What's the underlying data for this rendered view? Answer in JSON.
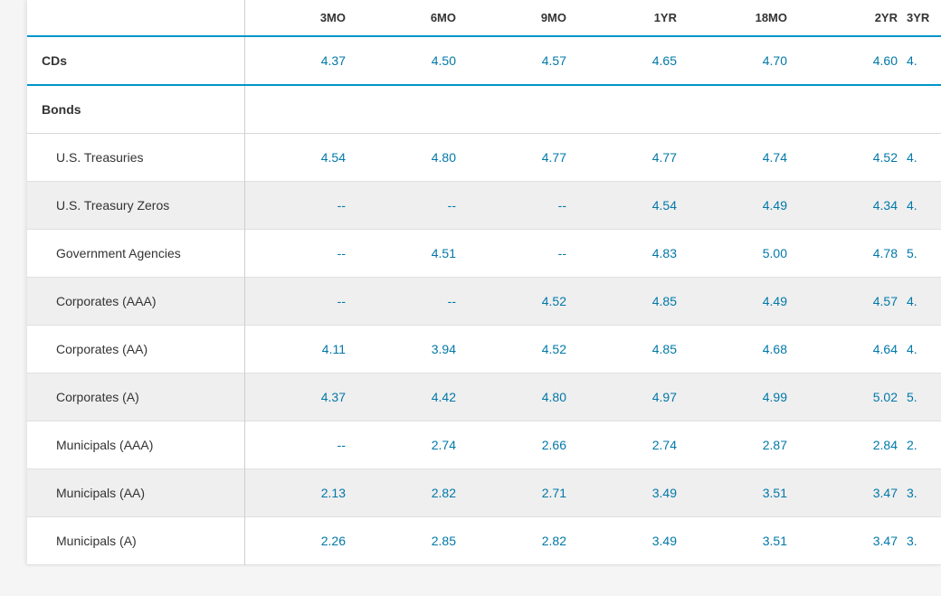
{
  "colors": {
    "accent_border": "#0095c8",
    "value_text": "#0078a8",
    "row_stripe": "#efefef",
    "label_text": "#333333",
    "grid_border": "#e0e0e0",
    "label_divider": "#cfcfcf",
    "page_bg": "#ffffff"
  },
  "table": {
    "columns": [
      "3MO",
      "6MO",
      "9MO",
      "1YR",
      "18MO",
      "2YR"
    ],
    "cut_column": "3YR",
    "rows": [
      {
        "type": "top",
        "label": "CDs",
        "values": [
          "4.37",
          "4.50",
          "4.57",
          "4.65",
          "4.70",
          "4.60"
        ],
        "cut_value": "4."
      },
      {
        "type": "section",
        "label": "Bonds",
        "values": [
          "",
          "",
          "",
          "",
          "",
          ""
        ],
        "cut_value": ""
      },
      {
        "type": "sub",
        "stripe": false,
        "label": "U.S. Treasuries",
        "values": [
          "4.54",
          "4.80",
          "4.77",
          "4.77",
          "4.74",
          "4.52"
        ],
        "cut_value": "4."
      },
      {
        "type": "sub",
        "stripe": true,
        "label": "U.S. Treasury Zeros",
        "values": [
          "--",
          "--",
          "--",
          "4.54",
          "4.49",
          "4.34"
        ],
        "cut_value": "4."
      },
      {
        "type": "sub",
        "stripe": false,
        "label": "Government Agencies",
        "values": [
          "--",
          "4.51",
          "--",
          "4.83",
          "5.00",
          "4.78"
        ],
        "cut_value": "5."
      },
      {
        "type": "sub",
        "stripe": true,
        "label": "Corporates (AAA)",
        "values": [
          "--",
          "--",
          "4.52",
          "4.85",
          "4.49",
          "4.57"
        ],
        "cut_value": "4."
      },
      {
        "type": "sub",
        "stripe": false,
        "label": "Corporates (AA)",
        "values": [
          "4.11",
          "3.94",
          "4.52",
          "4.85",
          "4.68",
          "4.64"
        ],
        "cut_value": "4."
      },
      {
        "type": "sub",
        "stripe": true,
        "label": "Corporates (A)",
        "values": [
          "4.37",
          "4.42",
          "4.80",
          "4.97",
          "4.99",
          "5.02"
        ],
        "cut_value": "5."
      },
      {
        "type": "sub",
        "stripe": false,
        "label": "Municipals (AAA)",
        "values": [
          "--",
          "2.74",
          "2.66",
          "2.74",
          "2.87",
          "2.84"
        ],
        "cut_value": "2."
      },
      {
        "type": "sub",
        "stripe": true,
        "label": "Municipals (AA)",
        "values": [
          "2.13",
          "2.82",
          "2.71",
          "3.49",
          "3.51",
          "3.47"
        ],
        "cut_value": "3."
      },
      {
        "type": "sub",
        "stripe": false,
        "label": "Municipals (A)",
        "values": [
          "2.26",
          "2.85",
          "2.82",
          "3.49",
          "3.51",
          "3.47"
        ],
        "cut_value": "3."
      }
    ]
  }
}
